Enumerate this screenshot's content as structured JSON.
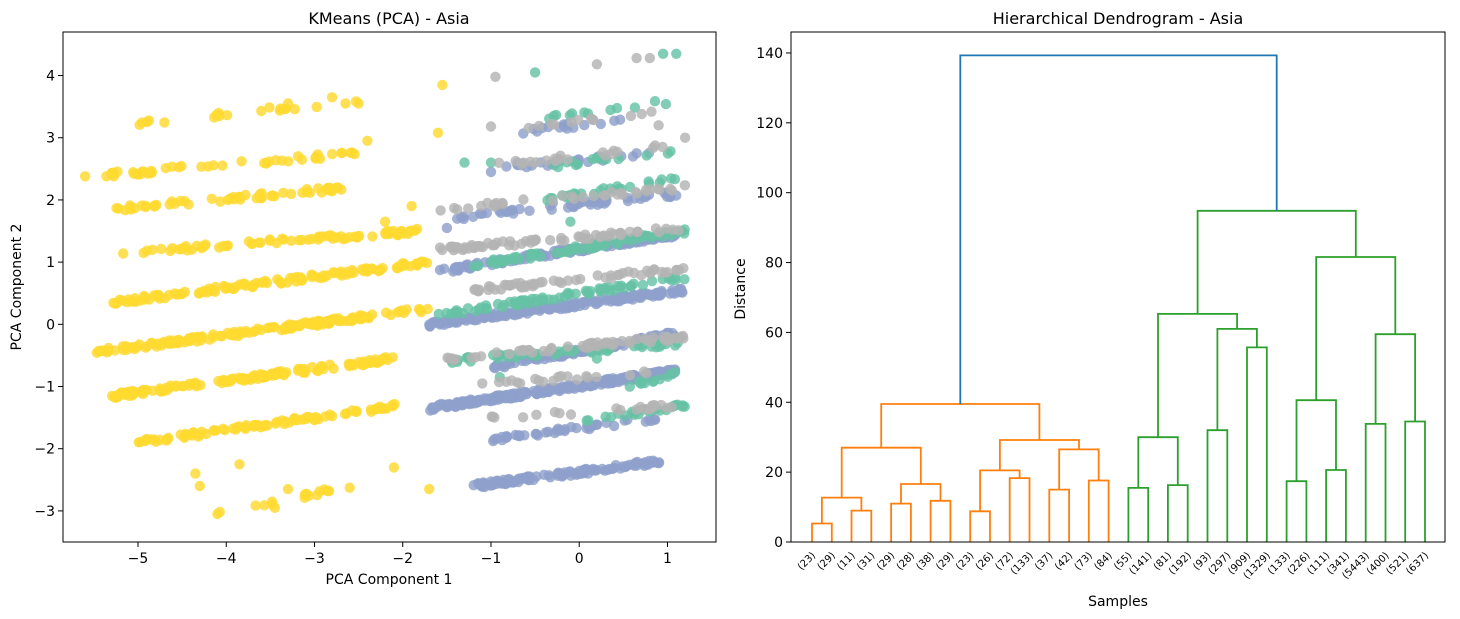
{
  "chart_data": [
    {
      "type": "scatter",
      "title": "KMeans (PCA) - Asia",
      "xlabel": "PCA Component 1",
      "ylabel": "PCA Component 2",
      "xlim": [
        -5.85,
        1.55
      ],
      "ylim": [
        -3.5,
        4.7
      ],
      "xticks": [
        -5,
        -4,
        -3,
        -2,
        -1,
        0,
        1
      ],
      "yticks": [
        -3,
        -2,
        -1,
        0,
        1,
        2,
        3,
        4
      ],
      "tick_labels_x": [
        "−5",
        "−4",
        "−3",
        "−2",
        "−1",
        "0",
        "1"
      ],
      "tick_labels_y": [
        "−3",
        "−2",
        "−1",
        "0",
        "1",
        "2",
        "3",
        "4"
      ],
      "grid": false,
      "cluster_colors": [
        "#ffd92f",
        "#8da0cb",
        "#66c2a5",
        "#b3b3b3"
      ],
      "series": [
        {
          "color": "#ffd92f",
          "bands": [
            {
              "x0": -5.5,
              "x1": -1.7,
              "y0": -0.45,
              "y1": 0.25,
              "n": 150
            },
            {
              "x0": -5.3,
              "x1": -1.7,
              "y0": 0.35,
              "y1": 1.0,
              "n": 120
            },
            {
              "x0": -5.2,
              "x1": -1.8,
              "y0": 1.15,
              "y1": 1.5,
              "n": 75
            },
            {
              "x0": -5.3,
              "x1": -2.1,
              "y0": -1.15,
              "y1": -0.55,
              "n": 130
            },
            {
              "x0": -5.0,
              "x1": -2.0,
              "y0": -1.9,
              "y1": -1.3,
              "n": 85
            },
            {
              "x0": -5.3,
              "x1": -2.6,
              "y0": 1.85,
              "y1": 2.2,
              "n": 55
            },
            {
              "x0": -5.4,
              "x1": -2.5,
              "y0": 2.4,
              "y1": 2.75,
              "n": 45
            },
            {
              "x0": -5.2,
              "x1": -2.5,
              "y0": 3.2,
              "y1": 3.6,
              "n": 20
            },
            {
              "x0": -4.3,
              "x1": -2.6,
              "y0": -3.1,
              "y1": -2.6,
              "n": 15
            }
          ],
          "points": [
            [
              -5.6,
              2.38
            ],
            [
              -5.35,
              -0.45
            ],
            [
              -5.1,
              -1.15
            ],
            [
              -4.85,
              -1.85
            ],
            [
              -4.3,
              -2.6
            ],
            [
              -4.35,
              -2.4
            ],
            [
              -4.1,
              -3.05
            ],
            [
              -3.85,
              -2.25
            ],
            [
              -3.45,
              -2.95
            ],
            [
              -3.3,
              -2.65
            ],
            [
              -3.3,
              3.55
            ],
            [
              -2.8,
              3.65
            ],
            [
              -2.5,
              3.55
            ],
            [
              -2.4,
              2.95
            ],
            [
              -1.7,
              -2.65
            ],
            [
              -1.6,
              3.08
            ],
            [
              -1.55,
              3.85
            ],
            [
              -2.2,
              1.65
            ],
            [
              -1.9,
              1.9
            ],
            [
              -2.1,
              -2.3
            ]
          ]
        },
        {
          "color": "#8da0cb",
          "bands": [
            {
              "x0": -1.7,
              "x1": 1.1,
              "y0": -1.35,
              "y1": -0.75,
              "n": 240
            },
            {
              "x0": -1.7,
              "x1": 1.2,
              "y0": 0.0,
              "y1": 0.55,
              "n": 190
            },
            {
              "x0": -1.6,
              "x1": 1.1,
              "y0": 0.85,
              "y1": 1.45,
              "n": 130
            },
            {
              "x0": -1.0,
              "x1": 1.1,
              "y0": -0.7,
              "y1": -0.15,
              "n": 90
            },
            {
              "x0": -1.4,
              "x1": 1.1,
              "y0": 1.7,
              "y1": 2.1,
              "n": 55
            },
            {
              "x0": -1.0,
              "x1": 0.9,
              "y0": -1.85,
              "y1": -1.5,
              "n": 45
            },
            {
              "x0": -1.0,
              "x1": 0.9,
              "y0": 2.5,
              "y1": 2.75,
              "n": 25
            },
            {
              "x0": -0.9,
              "x1": 0.5,
              "y0": 3.05,
              "y1": 3.3,
              "n": 15
            },
            {
              "x0": -1.2,
              "x1": 0.95,
              "y0": -2.6,
              "y1": -2.2,
              "n": 110
            }
          ],
          "points": [
            [
              -1.0,
              2.45
            ],
            [
              -0.7,
              2.6
            ],
            [
              -1.5,
              1.55
            ],
            [
              -0.3,
              1.95
            ]
          ]
        },
        {
          "color": "#66c2a5",
          "bands": [
            {
              "x0": -1.6,
              "x1": 1.2,
              "y0": 0.15,
              "y1": 0.75,
              "n": 75
            },
            {
              "x0": -1.2,
              "x1": 1.2,
              "y0": 0.95,
              "y1": 1.5,
              "n": 65
            },
            {
              "x0": -1.6,
              "x1": 1.2,
              "y0": -0.6,
              "y1": -0.3,
              "n": 55
            },
            {
              "x0": 0.0,
              "x1": 1.2,
              "y0": -1.55,
              "y1": -1.3,
              "n": 25
            },
            {
              "x0": -0.4,
              "x1": 1.2,
              "y0": 2.0,
              "y1": 2.35,
              "n": 25
            },
            {
              "x0": -0.3,
              "x1": 1.1,
              "y0": 2.55,
              "y1": 2.8,
              "n": 15
            },
            {
              "x0": -0.4,
              "x1": 1.1,
              "y0": 3.3,
              "y1": 3.6,
              "n": 12
            },
            {
              "x0": 0.5,
              "x1": 1.1,
              "y0": -1.0,
              "y1": -0.8,
              "n": 12
            }
          ],
          "points": [
            [
              -0.5,
              4.05
            ],
            [
              0.95,
              4.35
            ],
            [
              1.1,
              4.35
            ],
            [
              -1.3,
              2.6
            ],
            [
              -1.0,
              2.6
            ],
            [
              -0.1,
              1.65
            ],
            [
              0.2,
              -0.55
            ],
            [
              -0.9,
              -0.85
            ]
          ]
        },
        {
          "color": "#b3b3b3",
          "bands": [
            {
              "x0": -1.6,
              "x1": 1.2,
              "y0": 1.2,
              "y1": 1.55,
              "n": 65
            },
            {
              "x0": -1.5,
              "x1": 1.2,
              "y0": -0.55,
              "y1": -0.2,
              "n": 60
            },
            {
              "x0": -1.2,
              "x1": 1.2,
              "y0": 0.55,
              "y1": 0.9,
              "n": 55
            },
            {
              "x0": -1.6,
              "x1": 1.2,
              "y0": 1.85,
              "y1": 2.2,
              "n": 35
            },
            {
              "x0": -1.0,
              "x1": 1.1,
              "y0": -1.5,
              "y1": -1.3,
              "n": 22
            },
            {
              "x0": -1.0,
              "x1": 0.95,
              "y0": 2.55,
              "y1": 2.85,
              "n": 20
            },
            {
              "x0": -0.6,
              "x1": 0.9,
              "y0": 3.15,
              "y1": 3.45,
              "n": 12
            },
            {
              "x0": -1.1,
              "x1": 1.1,
              "y0": -0.95,
              "y1": -0.75,
              "n": 20
            }
          ],
          "points": [
            [
              -0.95,
              3.98
            ],
            [
              0.2,
              4.18
            ],
            [
              0.65,
              4.28
            ],
            [
              0.8,
              4.28
            ],
            [
              -1.0,
              3.18
            ],
            [
              1.2,
              3.0
            ],
            [
              0.9,
              3.2
            ]
          ]
        }
      ]
    },
    {
      "type": "dendrogram",
      "title": "Hierarchical Dendrogram - Asia",
      "xlabel": "Samples",
      "ylabel": "Distance",
      "ylim": [
        0,
        146
      ],
      "yticks": [
        0,
        20,
        40,
        60,
        80,
        100,
        120,
        140
      ],
      "grid": false,
      "leaf_labels": [
        "(23)",
        "(29)",
        "(11)",
        "(31)",
        "(29)",
        "(28)",
        "(38)",
        "(29)",
        "(23)",
        "(26)",
        "(72)",
        "(133)",
        "(37)",
        "(42)",
        "(73)",
        "(84)",
        "(55)",
        "(141)",
        "(81)",
        "(192)",
        "(93)",
        "(297)",
        "(909)",
        "(1329)",
        "(133)",
        "(226)",
        "(111)",
        "(341)",
        "(5443)",
        "(400)",
        "(521)",
        "(637)"
      ],
      "links": [
        {
          "color": "#ff7f0e",
          "left": "leaf:0",
          "right": "leaf:1",
          "height": 5.3
        },
        {
          "color": "#ff7f0e",
          "left": "leaf:2",
          "right": "leaf:3",
          "height": 9.0
        },
        {
          "color": "#ff7f0e",
          "left": "link:0",
          "right": "link:1",
          "height": 12.7
        },
        {
          "color": "#ff7f0e",
          "left": "leaf:4",
          "right": "leaf:5",
          "height": 11.0
        },
        {
          "color": "#ff7f0e",
          "left": "leaf:6",
          "right": "leaf:7",
          "height": 11.8
        },
        {
          "color": "#ff7f0e",
          "left": "link:3",
          "right": "link:4",
          "height": 16.6
        },
        {
          "color": "#ff7f0e",
          "left": "link:2",
          "right": "link:5",
          "height": 27.0
        },
        {
          "color": "#ff7f0e",
          "left": "leaf:8",
          "right": "leaf:9",
          "height": 8.8
        },
        {
          "color": "#ff7f0e",
          "left": "leaf:10",
          "right": "leaf:11",
          "height": 18.3
        },
        {
          "color": "#ff7f0e",
          "left": "link:7",
          "right": "link:8",
          "height": 20.5
        },
        {
          "color": "#ff7f0e",
          "left": "leaf:12",
          "right": "leaf:13",
          "height": 15.0
        },
        {
          "color": "#ff7f0e",
          "left": "leaf:14",
          "right": "leaf:15",
          "height": 17.6
        },
        {
          "color": "#ff7f0e",
          "left": "link:10",
          "right": "link:11",
          "height": 26.5
        },
        {
          "color": "#ff7f0e",
          "left": "link:9",
          "right": "link:12",
          "height": 29.2
        },
        {
          "color": "#ff7f0e",
          "left": "link:6",
          "right": "link:13",
          "height": 39.5
        },
        {
          "color": "#2ca02c",
          "left": "leaf:16",
          "right": "leaf:17",
          "height": 15.5
        },
        {
          "color": "#2ca02c",
          "left": "leaf:18",
          "right": "leaf:19",
          "height": 16.3
        },
        {
          "color": "#2ca02c",
          "left": "link:15",
          "right": "link:16",
          "height": 30.0
        },
        {
          "color": "#2ca02c",
          "left": "leaf:20",
          "right": "leaf:21",
          "height": 32.0
        },
        {
          "color": "#2ca02c",
          "left": "leaf:22",
          "right": "leaf:23",
          "height": 55.7
        },
        {
          "color": "#2ca02c",
          "left": "link:18",
          "right": "link:19",
          "height": 61.0
        },
        {
          "color": "#2ca02c",
          "left": "link:17",
          "right": "link:20",
          "height": 65.3
        },
        {
          "color": "#2ca02c",
          "left": "leaf:24",
          "right": "leaf:25",
          "height": 17.4
        },
        {
          "color": "#2ca02c",
          "left": "leaf:26",
          "right": "leaf:27",
          "height": 20.6
        },
        {
          "color": "#2ca02c",
          "left": "link:22",
          "right": "link:23",
          "height": 40.6
        },
        {
          "color": "#2ca02c",
          "left": "leaf:28",
          "right": "leaf:29",
          "height": 33.8
        },
        {
          "color": "#2ca02c",
          "left": "leaf:30",
          "right": "leaf:31",
          "height": 34.5
        },
        {
          "color": "#2ca02c",
          "left": "link:25",
          "right": "link:26",
          "height": 59.5
        },
        {
          "color": "#2ca02c",
          "left": "link:24",
          "right": "link:27",
          "height": 81.6
        },
        {
          "color": "#2ca02c",
          "left": "link:21",
          "right": "link:28",
          "height": 94.8
        },
        {
          "color": "#1f77b4",
          "left": "link:14",
          "right": "link:29",
          "height": 139.3
        }
      ]
    }
  ]
}
